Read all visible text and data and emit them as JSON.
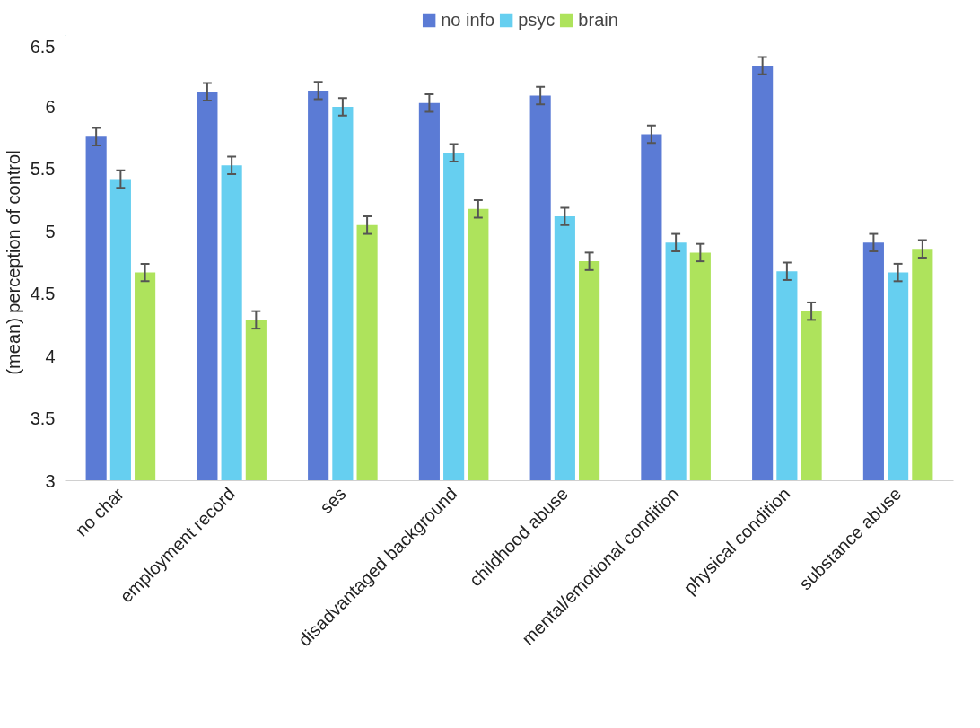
{
  "chart_data": {
    "type": "bar",
    "ylabel": "(mean) perception of control",
    "categories": [
      "no char",
      "employment record",
      "ses",
      "disadvantaged background",
      "childhood abuse",
      "mental/emotional condition",
      "physical condition",
      "substance abuse"
    ],
    "series": [
      {
        "name": "no info",
        "color": "#5b7bd5",
        "values": [
          5.76,
          6.12,
          6.13,
          6.03,
          6.09,
          5.78,
          6.33,
          4.91
        ],
        "errors": [
          0.07,
          0.07,
          0.07,
          0.07,
          0.07,
          0.07,
          0.07,
          0.07
        ]
      },
      {
        "name": "psyc",
        "color": "#66cff0",
        "values": [
          5.42,
          5.53,
          6.0,
          5.63,
          5.12,
          4.91,
          4.68,
          4.67
        ],
        "errors": [
          0.07,
          0.07,
          0.07,
          0.07,
          0.07,
          0.07,
          0.07,
          0.07
        ]
      },
      {
        "name": "brain",
        "color": "#aee35c",
        "values": [
          4.67,
          4.29,
          5.05,
          5.18,
          4.76,
          4.83,
          4.36,
          4.86
        ],
        "errors": [
          0.07,
          0.07,
          0.07,
          0.07,
          0.07,
          0.07,
          0.07,
          0.07
        ]
      }
    ],
    "ylim": [
      3,
      6.5
    ],
    "yticks": [
      3,
      3.5,
      4,
      4.5,
      5,
      5.5,
      6,
      6.5
    ],
    "grid": false,
    "legend": "top"
  }
}
